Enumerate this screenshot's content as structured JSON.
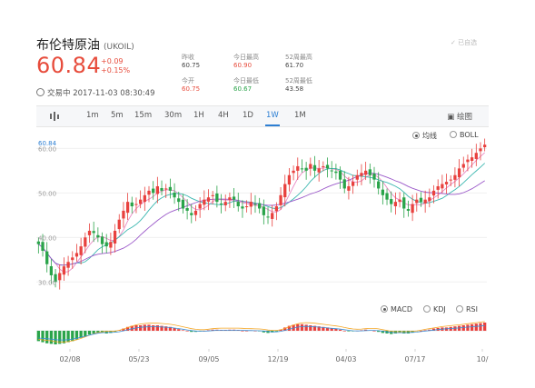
{
  "instrument": {
    "name": "布伦特原油",
    "code": "(UKOIL)"
  },
  "quote": {
    "price": "60.84",
    "change": "+0.09",
    "change_pct": "+0.15%",
    "time_label": "交易中 2017-11-03 08:30:49"
  },
  "stats": [
    {
      "label": "昨收",
      "value": "60.75",
      "tone": "neutral"
    },
    {
      "label": "今日最高",
      "value": "60.90",
      "tone": "red"
    },
    {
      "label": "52周最高",
      "value": "61.70",
      "tone": "neutral"
    },
    {
      "label": "今开",
      "value": "60.75",
      "tone": "red"
    },
    {
      "label": "今日最低",
      "value": "60.67",
      "tone": "green"
    },
    {
      "label": "52周最低",
      "value": "43.58",
      "tone": "neutral"
    }
  ],
  "self_select_label": "已自选",
  "toolbar": {
    "periods": [
      "1m",
      "5m",
      "15m",
      "30m",
      "1H",
      "4H",
      "1D",
      "1W",
      "1M"
    ],
    "active": "1W",
    "draw_label": "绘图"
  },
  "main_indicators": {
    "options": [
      "均线",
      "BOLL"
    ],
    "selected": "均线"
  },
  "sub_indicators": {
    "options": [
      "MACD",
      "KDJ",
      "RSI"
    ],
    "selected": "MACD"
  },
  "colors": {
    "up": "#e8413e",
    "down": "#2aa44a",
    "ma_fast": "#e98ac5",
    "ma_mid": "#3bb7b0",
    "ma_slow": "#9b59c9",
    "accent": "#2d7fd3"
  },
  "chart_data": {
    "type": "candlestick",
    "price_label": "60.84",
    "y_ticks": [
      "60.00",
      "50.00",
      "40.00",
      "30.00"
    ],
    "x_ticks": [
      "02/08",
      "05/23",
      "09/05",
      "12/19",
      "04/03",
      "07/17",
      "10/"
    ],
    "ylim": [
      27,
      61.5
    ],
    "close": [
      38.5,
      37.0,
      34.0,
      31.5,
      30.0,
      32.0,
      33.5,
      34.5,
      35.5,
      36.5,
      38.0,
      40.0,
      41.5,
      41.0,
      40.0,
      38.5,
      38.0,
      39.0,
      41.5,
      44.0,
      46.0,
      48.0,
      47.0,
      47.5,
      48.5,
      49.5,
      50.5,
      50.0,
      51.5,
      50.5,
      51.0,
      50.5,
      49.0,
      48.0,
      46.5,
      46.0,
      45.0,
      46.0,
      47.5,
      48.5,
      49.0,
      49.5,
      48.0,
      47.5,
      48.0,
      49.0,
      48.5,
      47.0,
      46.5,
      47.0,
      48.0,
      47.5,
      46.5,
      45.0,
      44.5,
      45.5,
      47.0,
      49.5,
      52.0,
      54.0,
      55.0,
      56.0,
      55.5,
      55.0,
      56.5,
      55.0,
      55.5,
      56.0,
      55.5,
      55.0,
      54.5,
      53.0,
      51.0,
      51.5,
      52.5,
      54.0,
      54.5,
      55.0,
      54.0,
      53.0,
      51.0,
      49.5,
      48.5,
      47.5,
      48.0,
      48.5,
      46.5,
      46.0,
      47.5,
      48.5,
      48.0,
      48.5,
      49.0,
      50.5,
      51.5,
      52.0,
      52.5,
      53.0,
      54.0,
      55.5,
      56.5,
      57.5,
      58.0,
      59.0,
      60.0,
      60.84
    ],
    "macd_hist": [
      -1.9,
      -2.1,
      -2.3,
      -2.4,
      -2.5,
      -2.4,
      -2.3,
      -2.1,
      -1.9,
      -1.6,
      -1.3,
      -1.0,
      -0.7,
      -0.5,
      -0.4,
      -0.4,
      -0.5,
      -0.4,
      -0.2,
      0.1,
      0.4,
      0.7,
      0.9,
      1.0,
      1.0,
      1.1,
      1.1,
      1.0,
      1.0,
      0.9,
      0.8,
      0.7,
      0.5,
      0.3,
      0.1,
      0.0,
      -0.2,
      -0.2,
      -0.1,
      0.0,
      0.1,
      0.2,
      0.2,
      0.1,
      0.1,
      0.2,
      0.2,
      0.1,
      0.0,
      0.0,
      0.1,
      0.0,
      -0.1,
      -0.3,
      -0.4,
      -0.3,
      -0.1,
      0.2,
      0.6,
      0.9,
      1.1,
      1.2,
      1.2,
      1.1,
      1.0,
      0.9,
      0.8,
      0.7,
      0.6,
      0.5,
      0.4,
      0.2,
      0.0,
      -0.1,
      -0.1,
      0.0,
      0.1,
      0.2,
      0.1,
      0.0,
      -0.2,
      -0.4,
      -0.5,
      -0.6,
      -0.5,
      -0.4,
      -0.5,
      -0.5,
      -0.3,
      -0.1,
      0.0,
      0.1,
      0.2,
      0.4,
      0.5,
      0.6,
      0.6,
      0.7,
      0.8,
      0.9,
      1.0,
      1.1,
      1.2,
      1.3,
      1.4,
      1.5
    ]
  }
}
